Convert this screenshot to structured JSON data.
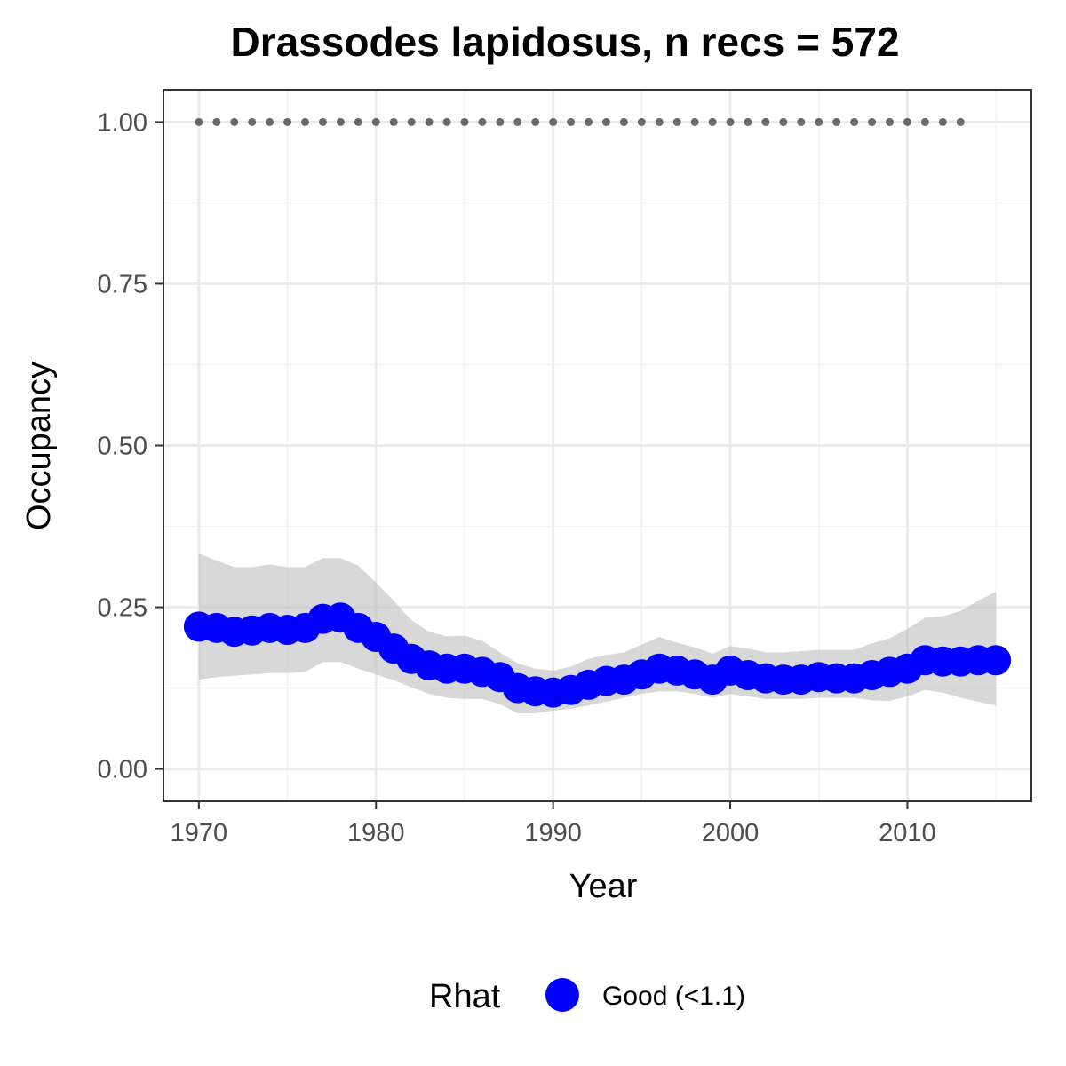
{
  "chart_data": {
    "type": "line",
    "title": "Drassodes lapidosus, n recs = 572",
    "xlabel": "Year",
    "ylabel": "Occupancy",
    "xlim": [
      1968,
      2017
    ],
    "ylim": [
      -0.05,
      1.05
    ],
    "x_ticks": [
      1970,
      1980,
      1990,
      2000,
      2010
    ],
    "x_tick_labels": [
      "1970",
      "1980",
      "1990",
      "2000",
      "2010"
    ],
    "y_ticks": [
      0,
      0.25,
      0.5,
      0.75,
      1
    ],
    "y_tick_labels": [
      "0.00",
      "0.25",
      "0.50",
      "0.75",
      "1.00"
    ],
    "grid": true,
    "legend": {
      "title": "Rhat",
      "position": "bottom",
      "entries": [
        {
          "label": "Good (<1.1)",
          "color": "#0000ff"
        }
      ]
    },
    "colors": {
      "series": "#0000ff",
      "ribbon": "#bebebe",
      "reference_points": "#696969",
      "grid_major": "#ebebeb",
      "grid_minor": "#f2f2f2",
      "panel_border": "#333333",
      "tick_text": "#4d4d4d"
    },
    "series": [
      {
        "x": [
          1970,
          1971,
          1972,
          1973,
          1974,
          1975,
          1976,
          1977,
          1978,
          1979,
          1980,
          1981,
          1982,
          1983,
          1984,
          1985,
          1986,
          1987,
          1988,
          1989,
          1990,
          1991,
          1992,
          1993,
          1994,
          1995,
          1996,
          1997,
          1998,
          1999,
          2000,
          2001,
          2002,
          2003,
          2004,
          2005,
          2006,
          2007,
          2008,
          2009,
          2010,
          2011,
          2012,
          2013,
          2014,
          2015
        ],
        "values": [
          0.22,
          0.218,
          0.212,
          0.214,
          0.218,
          0.215,
          0.218,
          0.232,
          0.234,
          0.218,
          0.204,
          0.186,
          0.17,
          0.16,
          0.155,
          0.155,
          0.15,
          0.142,
          0.125,
          0.12,
          0.118,
          0.122,
          0.13,
          0.136,
          0.138,
          0.146,
          0.155,
          0.152,
          0.146,
          0.138,
          0.152,
          0.145,
          0.14,
          0.138,
          0.138,
          0.142,
          0.14,
          0.14,
          0.145,
          0.15,
          0.155,
          0.168,
          0.166,
          0.166,
          0.168,
          0.168
        ],
        "lower": [
          0.138,
          0.142,
          0.144,
          0.146,
          0.148,
          0.148,
          0.15,
          0.165,
          0.165,
          0.155,
          0.146,
          0.137,
          0.126,
          0.116,
          0.11,
          0.108,
          0.108,
          0.1,
          0.086,
          0.086,
          0.09,
          0.093,
          0.098,
          0.104,
          0.11,
          0.116,
          0.12,
          0.12,
          0.116,
          0.11,
          0.116,
          0.112,
          0.108,
          0.108,
          0.108,
          0.11,
          0.11,
          0.11,
          0.106,
          0.105,
          0.112,
          0.122,
          0.118,
          0.11,
          0.104,
          0.098
        ],
        "upper": [
          0.333,
          0.322,
          0.312,
          0.312,
          0.316,
          0.312,
          0.312,
          0.326,
          0.326,
          0.314,
          0.288,
          0.26,
          0.23,
          0.212,
          0.205,
          0.206,
          0.198,
          0.18,
          0.163,
          0.155,
          0.152,
          0.158,
          0.17,
          0.176,
          0.18,
          0.192,
          0.204,
          0.195,
          0.188,
          0.178,
          0.19,
          0.186,
          0.18,
          0.18,
          0.182,
          0.184,
          0.184,
          0.184,
          0.194,
          0.202,
          0.216,
          0.234,
          0.236,
          0.244,
          0.26,
          0.274
        ]
      },
      {
        "x": [
          1970,
          1971,
          1972,
          1973,
          1974,
          1975,
          1976,
          1977,
          1978,
          1979,
          1980,
          1981,
          1982,
          1983,
          1984,
          1985,
          1986,
          1987,
          1988,
          1989,
          1990,
          1991,
          1992,
          1993,
          1994,
          1995,
          1996,
          1997,
          1998,
          1999,
          2000,
          2001,
          2002,
          2003,
          2004,
          2005,
          2006,
          2007,
          2008,
          2009,
          2010,
          2011,
          2012,
          2013
        ],
        "values": [
          1,
          1,
          1,
          1,
          1,
          1,
          1,
          1,
          1,
          1,
          1,
          1,
          1,
          1,
          1,
          1,
          1,
          1,
          1,
          1,
          1,
          1,
          1,
          1,
          1,
          1,
          1,
          1,
          1,
          1,
          1,
          1,
          1,
          1,
          1,
          1,
          1,
          1,
          1,
          1,
          1,
          1,
          1,
          1
        ]
      }
    ]
  }
}
